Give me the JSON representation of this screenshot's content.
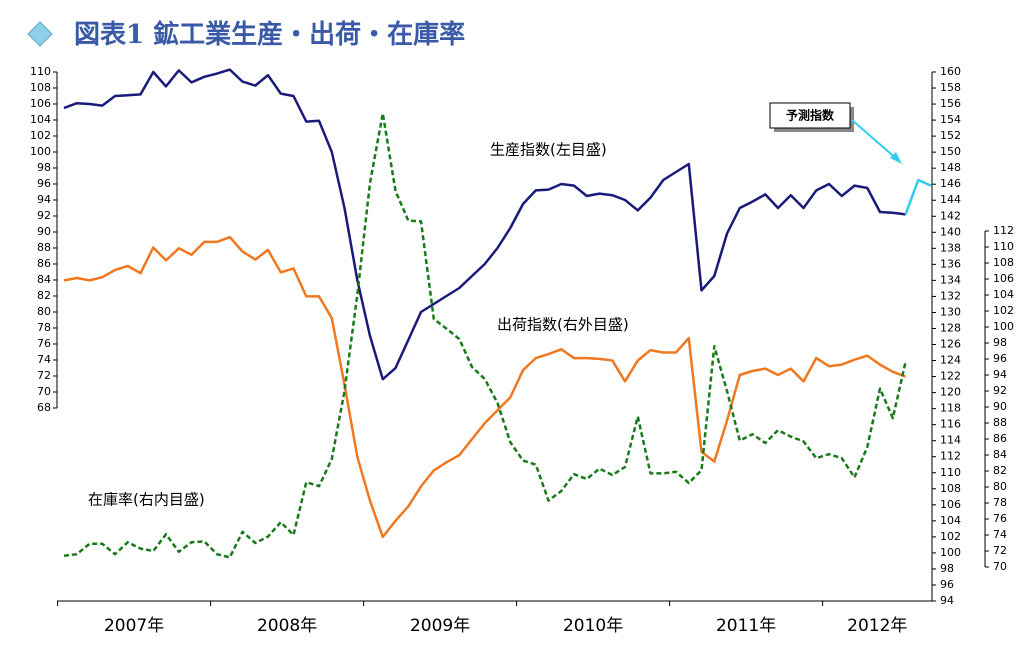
{
  "chart_data": {
    "type": "line",
    "title": "図表1 鉱工業生産・出荷・在庫率",
    "x_groups": [
      "2007年",
      "2008年",
      "2009年",
      "2010年",
      "2011年",
      "2012年"
    ],
    "annotations": [
      "生産指数(左目盛)",
      "出荷指数(右外目盛)",
      "在庫率(右内目盛)",
      "予測指数"
    ],
    "categories": [
      null,
      null,
      null,
      null,
      null,
      null,
      null,
      null,
      null,
      null,
      null,
      null,
      null,
      null,
      null,
      null,
      null,
      null,
      null,
      null,
      null,
      null,
      null,
      null,
      null,
      null,
      null,
      null,
      null,
      null,
      null,
      null,
      null,
      null,
      null,
      null,
      null,
      null,
      null,
      null,
      null,
      null,
      null,
      null,
      null,
      null,
      null,
      null,
      null,
      null,
      null,
      null,
      null,
      null,
      null,
      null,
      null,
      null,
      null,
      null,
      null,
      null,
      null,
      null,
      null,
      null,
      null,
      null,
      null
    ],
    "ylim": [
      68,
      110
    ],
    "yticks": [
      68,
      70,
      72,
      74,
      76,
      78,
      80,
      82,
      84,
      86,
      88,
      90,
      92,
      94,
      96,
      98,
      100,
      102,
      104,
      106,
      108,
      110
    ],
    "y2lim": [
      94,
      160
    ],
    "y2ticks": [
      94,
      96,
      98,
      100,
      102,
      104,
      106,
      108,
      110,
      112,
      114,
      116,
      118,
      120,
      122,
      124,
      126,
      128,
      130,
      132,
      134,
      136,
      138,
      140,
      142,
      144,
      146,
      148,
      150,
      152,
      154,
      156,
      158,
      160
    ],
    "y3lim": [
      70,
      112
    ],
    "y3ticks": [
      70,
      72,
      74,
      76,
      78,
      80,
      82,
      84,
      86,
      88,
      90,
      92,
      94,
      96,
      98,
      100,
      102,
      104,
      106,
      108,
      110,
      112
    ],
    "series": [
      {
        "name": "生産指数",
        "color": "#1a1a7a",
        "axis": "y",
        "values": [
          105.5,
          106.1,
          106,
          105.8,
          107,
          107.1,
          107.2,
          110,
          108.2,
          110.2,
          108.7,
          109.4,
          109.8,
          110.3,
          108.8,
          108.3,
          109.6,
          107.3,
          107,
          103.8,
          103.9,
          100,
          93,
          84,
          77,
          71.6,
          73,
          76.5,
          80,
          81,
          82,
          83,
          84.5,
          86,
          88,
          90.5,
          93.5,
          95.2,
          95.3,
          96,
          95.8,
          94.5,
          94.8,
          94.6,
          94,
          92.7,
          94.3,
          96.5,
          97.5,
          98.5,
          82.7,
          84.5,
          89.8,
          93,
          93.8,
          94.7,
          93,
          94.6,
          93,
          95.2,
          96,
          94.5,
          95.8,
          95.5,
          92.5,
          92.4,
          92.2,
          null,
          null
        ]
      },
      {
        "name": "予測指数",
        "color": "#33ccee",
        "axis": "y",
        "values": [
          null,
          null,
          null,
          null,
          null,
          null,
          null,
          null,
          null,
          null,
          null,
          null,
          null,
          null,
          null,
          null,
          null,
          null,
          null,
          null,
          null,
          null,
          null,
          null,
          null,
          null,
          null,
          null,
          null,
          null,
          null,
          null,
          null,
          null,
          null,
          null,
          null,
          null,
          null,
          null,
          null,
          null,
          null,
          null,
          null,
          null,
          null,
          null,
          null,
          null,
          null,
          null,
          null,
          null,
          null,
          null,
          null,
          null,
          null,
          null,
          null,
          null,
          null,
          null,
          null,
          null,
          92.2,
          96.5,
          95.8
        ]
      },
      {
        "name": "出荷指数",
        "color": "#f07820",
        "axis": "y2",
        "values": [
          134,
          134.3,
          134,
          134.4,
          135.3,
          135.8,
          134.9,
          138.1,
          136.5,
          138,
          137.2,
          138.8,
          138.8,
          139.4,
          137.6,
          136.6,
          137.8,
          135,
          135.5,
          132,
          132,
          129.3,
          121,
          112,
          106.5,
          102,
          104,
          105.8,
          108.3,
          110.3,
          111.3,
          112.2,
          114.2,
          116.2,
          117.8,
          119.4,
          122.8,
          124.3,
          124.8,
          125.4,
          124.3,
          124.3,
          124.2,
          124,
          121.4,
          124,
          125.3,
          125,
          125,
          126.8,
          112.6,
          111.4,
          116.5,
          122.2,
          122.7,
          123,
          122.2,
          123,
          121.4,
          124.3,
          123.3,
          123.5,
          124.1,
          124.6,
          123.5,
          122.6,
          122,
          null,
          null
        ]
      },
      {
        "name": "在庫率",
        "color": "#1a7a1a",
        "axis": "y3",
        "dashed": true,
        "values": [
          71.4,
          71.6,
          72.9,
          72.9,
          71.6,
          73.1,
          72.3,
          72,
          74.1,
          71.9,
          73.1,
          73.2,
          71.6,
          71.2,
          74.4,
          73,
          73.8,
          75.6,
          74,
          80.6,
          80.1,
          83.5,
          92,
          104,
          118,
          126.7,
          117,
          113.3,
          113.2,
          101,
          99.8,
          98.5,
          95,
          93.5,
          90.5,
          85.6,
          83.3,
          82.8,
          78.3,
          79.5,
          81.6,
          81,
          82.3,
          81.5,
          82.5,
          88.8,
          81.7,
          81.7,
          81.9,
          80.5,
          82.1,
          97.6,
          92,
          85.8,
          86.6,
          85.5,
          87.1,
          86.3,
          85.7,
          83.6,
          84.1,
          83.6,
          81.2,
          85,
          92.3,
          88.6,
          95.6,
          null,
          null
        ]
      }
    ]
  }
}
